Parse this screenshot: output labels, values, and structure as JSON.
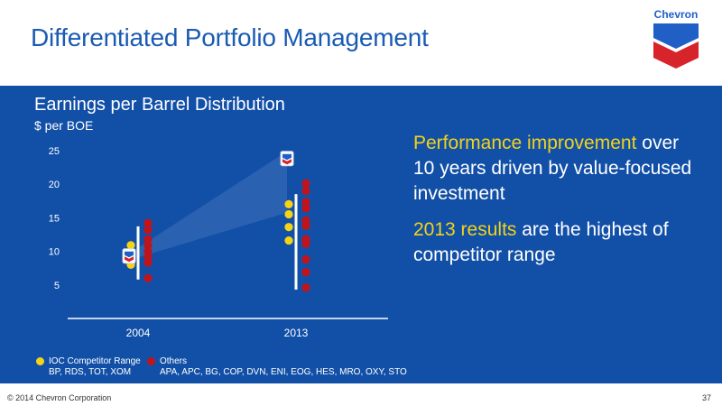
{
  "slide": {
    "title": "Differentiated Portfolio Management",
    "logo_text": "Chevron",
    "copyright": "© 2014 Chevron Corporation",
    "page_number": "37"
  },
  "colors": {
    "panel_bg": "#1250a8",
    "title": "#1a5bb3",
    "highlight": "#f3d21a",
    "ioc": "#f5d316",
    "others": "#c0141c",
    "chevron_blue": "#1f5fc6",
    "chevron_red": "#d7232a"
  },
  "message": {
    "line1_highlight": "Performance improvement",
    "line1_rest": "over 10 years driven by value-focused investment",
    "line2_highlight": "2013 results",
    "line2_rest": "are the highest of competitor range"
  },
  "legend": {
    "ioc_title": "IOC Competitor Range",
    "ioc_members": "BP, RDS, TOT, XOM",
    "others_title": "Others",
    "others_members": "APA, APC, BG, COP, DVN, ENI, EOG, HES, MRO, OXY, STO"
  },
  "chart_data": {
    "type": "scatter",
    "title": "Earnings per Barrel Distribution",
    "ylabel": "$ per BOE",
    "categories": [
      "2004",
      "2013"
    ],
    "yticks": [
      5,
      10,
      15,
      20,
      25
    ],
    "ylim": [
      0,
      27
    ],
    "series": [
      {
        "name": "IOC Competitor Range",
        "points": [
          {
            "x": "2004",
            "y": 10.9
          },
          {
            "x": "2004",
            "y": 9.6
          },
          {
            "x": "2004",
            "y": 8.9
          },
          {
            "x": "2004",
            "y": 8.0
          },
          {
            "x": "2013",
            "y": 17.0
          },
          {
            "x": "2013",
            "y": 15.5
          },
          {
            "x": "2013",
            "y": 13.6
          },
          {
            "x": "2013",
            "y": 11.6
          }
        ]
      },
      {
        "name": "Others",
        "points": [
          {
            "x": "2004",
            "y": 14.2
          },
          {
            "x": "2004",
            "y": 13.2
          },
          {
            "x": "2004",
            "y": 11.8
          },
          {
            "x": "2004",
            "y": 10.9
          },
          {
            "x": "2004",
            "y": 10.0
          },
          {
            "x": "2004",
            "y": 9.2
          },
          {
            "x": "2004",
            "y": 8.3
          },
          {
            "x": "2004",
            "y": 6.0
          },
          {
            "x": "2013",
            "y": 20.1
          },
          {
            "x": "2013",
            "y": 19.0
          },
          {
            "x": "2013",
            "y": 17.3
          },
          {
            "x": "2013",
            "y": 16.4
          },
          {
            "x": "2013",
            "y": 14.6
          },
          {
            "x": "2013",
            "y": 13.8
          },
          {
            "x": "2013",
            "y": 11.8
          },
          {
            "x": "2013",
            "y": 11.1
          },
          {
            "x": "2013",
            "y": 8.8
          },
          {
            "x": "2013",
            "y": 6.9
          },
          {
            "x": "2013",
            "y": 4.6
          }
        ]
      },
      {
        "name": "Chevron",
        "points": [
          {
            "x": "2004",
            "y": 9.3
          },
          {
            "x": "2013",
            "y": 23.8
          }
        ]
      }
    ],
    "ranges": [
      {
        "x": "2004",
        "low": 5.8,
        "high": 13.7
      },
      {
        "x": "2013",
        "low": 4.3,
        "high": 18.5
      }
    ]
  }
}
